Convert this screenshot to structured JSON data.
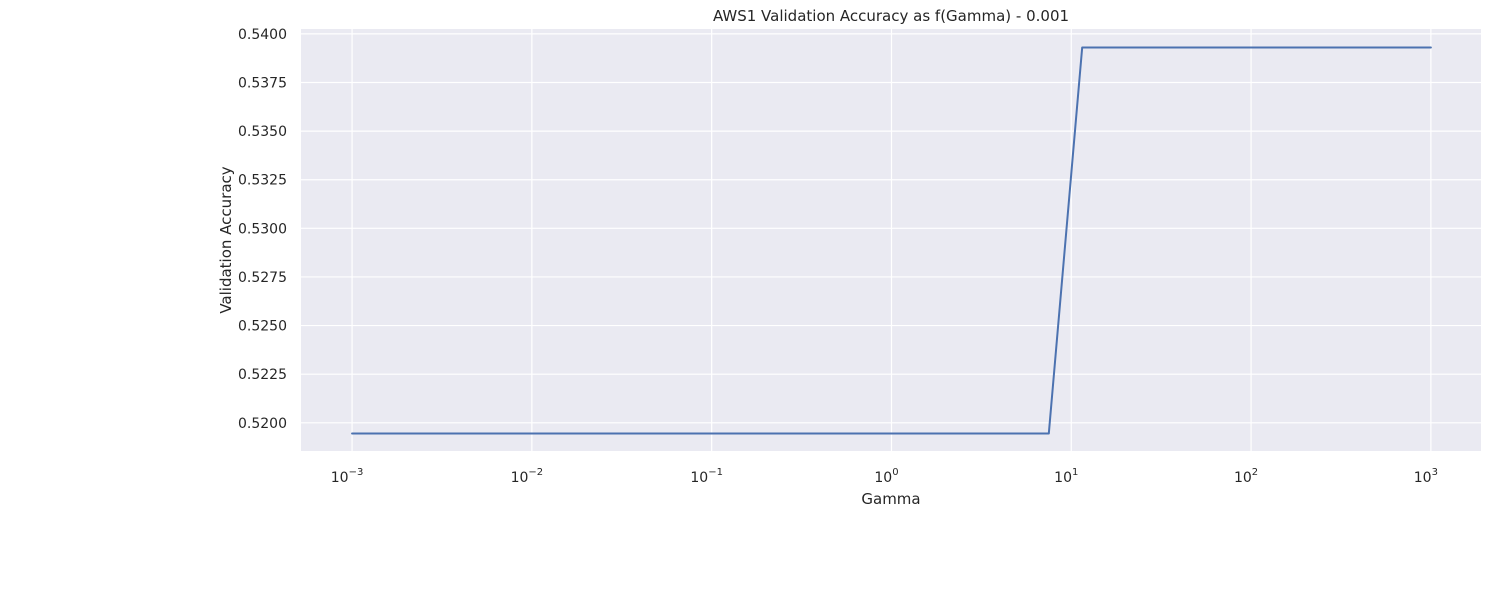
{
  "chart_data": {
    "type": "line",
    "title": "AWS1 Validation Accuracy as f(Gamma) - 0.001",
    "xlabel": "Gamma",
    "ylabel": "Validation Accuracy",
    "xscale": "log",
    "xlim": [
      0.00052,
      1900
    ],
    "ylim": [
      0.51855,
      0.54025
    ],
    "grid": true,
    "xticks": [
      {
        "base": "10",
        "exp": "−3",
        "value": 0.001
      },
      {
        "base": "10",
        "exp": "−2",
        "value": 0.01
      },
      {
        "base": "10",
        "exp": "−1",
        "value": 0.1
      },
      {
        "base": "10",
        "exp": "0",
        "value": 1
      },
      {
        "base": "10",
        "exp": "1",
        "value": 10
      },
      {
        "base": "10",
        "exp": "2",
        "value": 100
      },
      {
        "base": "10",
        "exp": "3",
        "value": 1000
      }
    ],
    "yticks": [
      "0.5200",
      "0.5225",
      "0.5250",
      "0.5275",
      "0.5300",
      "0.5325",
      "0.5350",
      "0.5375",
      "0.5400"
    ],
    "series": [
      {
        "color": "#4c72b0",
        "x": [
          0.001,
          0.00146,
          0.00214,
          0.00313,
          0.00459,
          0.00672,
          0.00983,
          0.0144,
          0.0211,
          0.0309,
          0.0452,
          0.0662,
          0.0969,
          0.142,
          0.208,
          0.304,
          0.445,
          0.652,
          0.955,
          1.4,
          2.05,
          3.0,
          4.39,
          6.43,
          7.5,
          11.5,
          16.8,
          24.6,
          36.0,
          52.7,
          77.2,
          113,
          165,
          242,
          354,
          519,
          760,
          1000
        ],
        "y": [
          0.51945,
          0.51945,
          0.51945,
          0.51945,
          0.51945,
          0.51945,
          0.51945,
          0.51945,
          0.51945,
          0.51945,
          0.51945,
          0.51945,
          0.51945,
          0.51945,
          0.51945,
          0.51945,
          0.51945,
          0.51945,
          0.51945,
          0.51945,
          0.51945,
          0.51945,
          0.51945,
          0.51945,
          0.51945,
          0.5393,
          0.5393,
          0.5393,
          0.5393,
          0.5393,
          0.5393,
          0.5393,
          0.5393,
          0.5393,
          0.5393,
          0.5393,
          0.5393,
          0.5393
        ]
      }
    ]
  }
}
